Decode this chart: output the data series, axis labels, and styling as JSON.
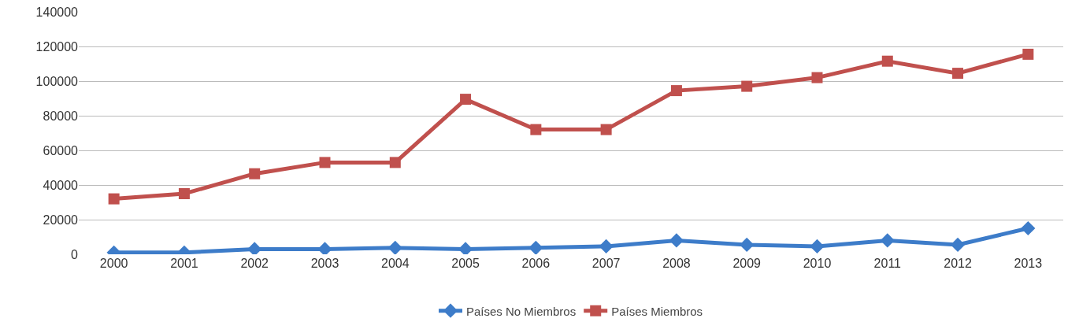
{
  "chart_data": {
    "type": "line",
    "categories": [
      "2000",
      "2001",
      "2002",
      "2003",
      "2004",
      "2005",
      "2006",
      "2007",
      "2008",
      "2009",
      "2010",
      "2011",
      "2012",
      "2013"
    ],
    "series": [
      {
        "name": "Países No Miembros",
        "color": "#3d7cc9",
        "marker": "diamond",
        "values": [
          1000,
          1000,
          3000,
          3000,
          3700,
          3000,
          3700,
          4600,
          8000,
          5500,
          4600,
          8000,
          5500,
          15000
        ]
      },
      {
        "name": "Países Miembros",
        "color": "#c0504d",
        "marker": "square",
        "values": [
          32000,
          35000,
          46500,
          53000,
          53000,
          89500,
          72000,
          72000,
          94500,
          97000,
          102000,
          111500,
          104500,
          115500
        ]
      }
    ],
    "ylim": [
      0,
      140000
    ],
    "yticks": [
      0,
      20000,
      40000,
      60000,
      80000,
      100000,
      120000,
      140000
    ],
    "grid": "y",
    "legend": "bottom",
    "line_style": "solid"
  }
}
